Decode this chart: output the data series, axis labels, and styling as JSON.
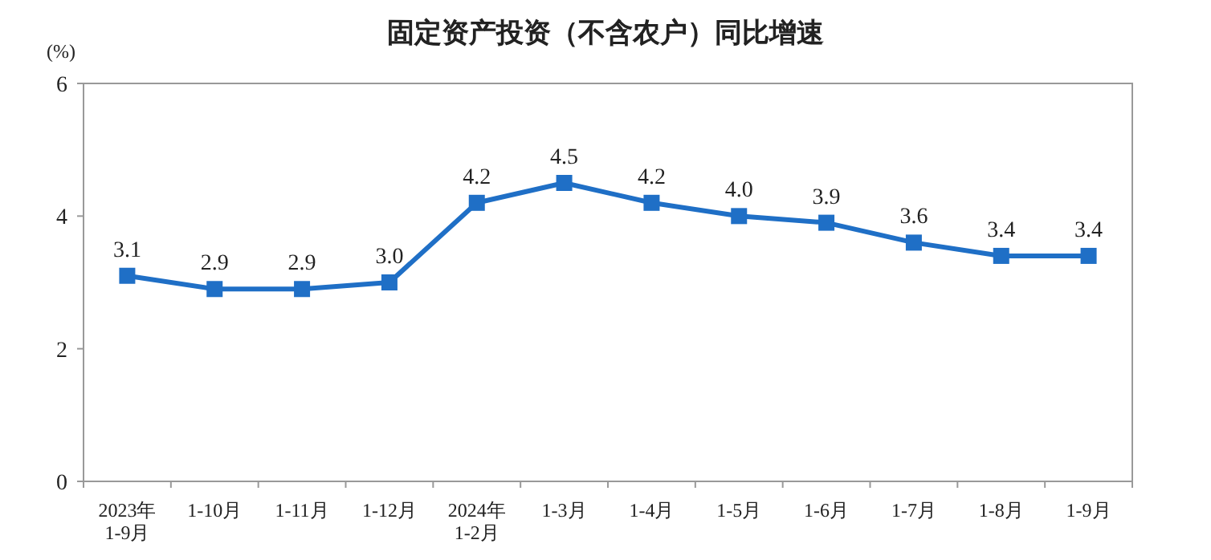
{
  "chart_data": {
    "type": "line",
    "title": "固定资产投资（不含农户）同比增速",
    "ylabel": "(%)",
    "categories": [
      "2023年\n1-9月",
      "1-10月",
      "1-11月",
      "1-12月",
      "2024年\n1-2月",
      "1-3月",
      "1-4月",
      "1-5月",
      "1-6月",
      "1-7月",
      "1-8月",
      "1-9月"
    ],
    "series": [
      {
        "color": "#1f6fc6",
        "values": [
          3.1,
          2.9,
          2.9,
          3.0,
          4.2,
          4.5,
          4.2,
          4.0,
          3.9,
          3.6,
          3.4,
          3.4
        ],
        "value_labels": [
          "3.1",
          "2.9",
          "2.9",
          "3.0",
          "4.2",
          "4.5",
          "4.2",
          "4.0",
          "3.9",
          "3.6",
          "3.4",
          "3.4"
        ]
      }
    ],
    "ylim": [
      0,
      6
    ],
    "yticks": [
      0,
      2,
      4,
      6
    ],
    "grid": false,
    "marker": "square",
    "line_style": "solid"
  }
}
